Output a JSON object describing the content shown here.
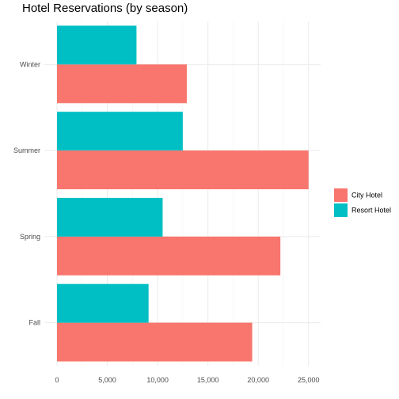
{
  "chart_data": {
    "type": "bar",
    "orientation": "horizontal",
    "title": "Hotel Reservations (by season)",
    "xlabel": "",
    "ylabel": "",
    "categories": [
      "Fall",
      "Spring",
      "Summer",
      "Winter"
    ],
    "series": [
      {
        "name": "City Hotel",
        "color": "#F8766D",
        "values": [
          19400,
          22200,
          25000,
          12900
        ]
      },
      {
        "name": "Resort Hotel",
        "color": "#00BFC4",
        "values": [
          9100,
          10500,
          12500,
          7900
        ]
      }
    ],
    "xlim": [
      0,
      26200
    ],
    "xticks": [
      0,
      5000,
      10000,
      15000,
      20000,
      25000
    ],
    "xtick_labels": [
      "0",
      "5,000",
      "10,000",
      "15,000",
      "20,000",
      "25,000"
    ],
    "grid": true,
    "legend_position": "right"
  }
}
